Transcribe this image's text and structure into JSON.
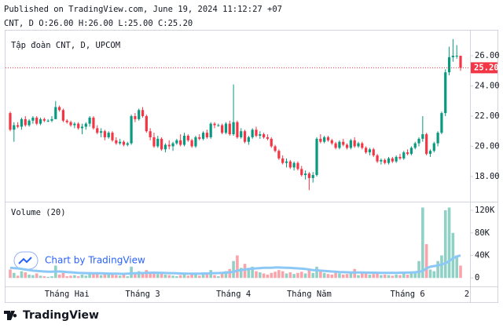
{
  "header": {
    "published": "Published on TradingView.com, June 19, 2024 11:12:27 +07",
    "ohlc": "CNT, D O:26.00 H:26.00 L:25.00 C:25.20"
  },
  "footer": {
    "brand": "TradingView",
    "watermark": "Chart by TradingView"
  },
  "chart_data": {
    "type": "candlestick",
    "title": "Tập đoàn CNT, D, UPCOM",
    "volume_title": "Volume (20)",
    "colors": {
      "up": "#089981",
      "down": "#f23645",
      "volume_ma": "#8cc8f5"
    },
    "ylim": [
      16.44,
      27.61
    ],
    "yticks": [
      {
        "value": 18,
        "label": "18.00"
      },
      {
        "value": 20,
        "label": "20.00"
      },
      {
        "value": 22,
        "label": "22.00"
      },
      {
        "value": 24,
        "label": "24.00"
      },
      {
        "value": 26,
        "label": "26.00"
      }
    ],
    "volume_ylim": [
      -15000,
      134000
    ],
    "volume_ticks": [
      0,
      {
        "value": 40000,
        "label": "40K"
      },
      {
        "value": 80000,
        "label": "80K"
      },
      {
        "value": 120000,
        "label": "120K"
      }
    ],
    "last_price_label": "25.20",
    "x_edge_label": "2",
    "categories": [
      null,
      null,
      null,
      null,
      null,
      null,
      null,
      null,
      null,
      null,
      null,
      null,
      null,
      null,
      null,
      "Tháng Hai",
      null,
      null,
      null,
      null,
      null,
      null,
      null,
      null,
      null,
      null,
      null,
      null,
      null,
      null,
      null,
      null,
      null,
      null,
      null,
      "Tháng 3",
      null,
      null,
      null,
      null,
      null,
      null,
      null,
      null,
      null,
      null,
      null,
      null,
      null,
      null,
      null,
      null,
      null,
      null,
      null,
      null,
      null,
      null,
      null,
      "Tháng 4",
      null,
      null,
      null,
      null,
      null,
      null,
      null,
      null,
      null,
      null,
      null,
      null,
      null,
      null,
      null,
      null,
      null,
      null,
      null,
      "Tháng Năm",
      null,
      null,
      null,
      null,
      null,
      null,
      null,
      null,
      null,
      null,
      null,
      null,
      null,
      null,
      null,
      null,
      null,
      null,
      null,
      null,
      null,
      null,
      null,
      null,
      null,
      "Tháng 6",
      null,
      null,
      null,
      null,
      null,
      null,
      null,
      null,
      null,
      null,
      null,
      null,
      null,
      null
    ],
    "candles": [
      [
        22.2,
        22.3,
        21.0,
        21.1,
        15000
      ],
      [
        21.1,
        21.6,
        20.3,
        21.4,
        9000
      ],
      [
        21.4,
        21.6,
        21.2,
        21.3,
        4000
      ],
      [
        21.3,
        21.9,
        21.1,
        21.8,
        12000
      ],
      [
        21.8,
        22.0,
        21.3,
        21.4,
        10000
      ],
      [
        21.4,
        21.8,
        21.3,
        21.7,
        6000
      ],
      [
        21.7,
        22.0,
        21.5,
        21.9,
        5000
      ],
      [
        21.9,
        22.0,
        21.4,
        21.5,
        8000
      ],
      [
        21.5,
        21.9,
        21.4,
        21.8,
        4000
      ],
      [
        21.8,
        21.9,
        21.6,
        21.7,
        3000
      ],
      [
        21.7,
        21.8,
        21.6,
        21.7,
        2000
      ],
      [
        21.7,
        22.0,
        21.6,
        21.8,
        3000
      ],
      [
        21.8,
        23.0,
        21.8,
        22.6,
        22000
      ],
      [
        22.6,
        22.7,
        22.3,
        22.4,
        6000
      ],
      [
        22.4,
        22.5,
        21.6,
        21.7,
        9000
      ],
      [
        21.7,
        21.8,
        21.5,
        21.6,
        3000
      ],
      [
        21.6,
        21.7,
        21.3,
        21.4,
        4000
      ],
      [
        21.4,
        21.6,
        21.2,
        21.5,
        5000
      ],
      [
        21.5,
        21.6,
        21.1,
        21.2,
        3000
      ],
      [
        21.2,
        21.5,
        20.8,
        21.3,
        6000
      ],
      [
        21.3,
        21.6,
        21.1,
        21.5,
        4000
      ],
      [
        21.5,
        22.0,
        21.3,
        21.9,
        8000
      ],
      [
        21.9,
        22.0,
        21.1,
        21.2,
        9000
      ],
      [
        21.2,
        21.4,
        20.8,
        20.9,
        7000
      ],
      [
        20.9,
        21.2,
        20.6,
        21.0,
        5000
      ],
      [
        21.0,
        21.1,
        20.4,
        20.6,
        8000
      ],
      [
        20.6,
        21.0,
        20.5,
        20.9,
        6000
      ],
      [
        20.9,
        21.0,
        20.3,
        20.4,
        7000
      ],
      [
        20.4,
        20.6,
        20.1,
        20.2,
        5000
      ],
      [
        20.2,
        20.5,
        20.1,
        20.3,
        4000
      ],
      [
        20.3,
        20.4,
        20.0,
        20.1,
        6000
      ],
      [
        20.1,
        20.3,
        20.0,
        20.2,
        3000
      ],
      [
        20.2,
        22.1,
        20.1,
        22.0,
        20000
      ],
      [
        22.0,
        22.2,
        21.6,
        21.8,
        10000
      ],
      [
        21.8,
        22.5,
        21.7,
        22.4,
        12000
      ],
      [
        22.4,
        22.6,
        21.9,
        22.0,
        9000
      ],
      [
        22.0,
        22.1,
        20.9,
        21.0,
        14000
      ],
      [
        21.0,
        21.2,
        20.4,
        20.6,
        8000
      ],
      [
        20.6,
        20.9,
        19.9,
        20.0,
        10000
      ],
      [
        20.0,
        20.7,
        19.9,
        20.5,
        7000
      ],
      [
        20.5,
        20.6,
        19.7,
        19.8,
        9000
      ],
      [
        19.8,
        20.2,
        19.6,
        20.1,
        6000
      ],
      [
        20.1,
        20.4,
        19.8,
        20.0,
        5000
      ],
      [
        20.0,
        20.3,
        19.7,
        20.2,
        4000
      ],
      [
        20.2,
        20.5,
        20.1,
        20.4,
        3000
      ],
      [
        20.4,
        20.8,
        20.0,
        20.1,
        5000
      ],
      [
        20.1,
        20.9,
        20.0,
        20.7,
        6000
      ],
      [
        20.7,
        20.8,
        20.3,
        20.4,
        4000
      ],
      [
        20.4,
        20.5,
        19.9,
        20.0,
        7000
      ],
      [
        20.0,
        20.7,
        19.9,
        20.6,
        8000
      ],
      [
        20.6,
        20.8,
        20.4,
        20.5,
        4000
      ],
      [
        20.5,
        21.0,
        20.4,
        20.9,
        10000
      ],
      [
        20.9,
        21.1,
        20.5,
        20.6,
        6000
      ],
      [
        20.6,
        21.6,
        20.5,
        21.5,
        14000
      ],
      [
        21.5,
        21.6,
        21.2,
        21.4,
        5000
      ],
      [
        21.4,
        21.5,
        21.3,
        21.4,
        3000
      ],
      [
        21.4,
        21.5,
        20.8,
        20.9,
        9000
      ],
      [
        20.9,
        21.6,
        20.8,
        21.5,
        12000
      ],
      [
        21.5,
        21.7,
        20.7,
        20.8,
        16000
      ],
      [
        20.8,
        24.1,
        20.7,
        21.6,
        30000
      ],
      [
        21.6,
        21.7,
        20.5,
        20.6,
        40000
      ],
      [
        20.6,
        21.2,
        20.5,
        21.0,
        18000
      ],
      [
        21.0,
        21.1,
        20.2,
        20.3,
        25000
      ],
      [
        20.3,
        20.7,
        20.1,
        20.6,
        15000
      ],
      [
        20.6,
        21.2,
        20.5,
        21.1,
        20000
      ],
      [
        21.1,
        21.3,
        20.6,
        20.7,
        12000
      ],
      [
        20.7,
        21.0,
        20.5,
        20.8,
        10000
      ],
      [
        20.8,
        20.9,
        20.5,
        20.6,
        8000
      ],
      [
        20.6,
        20.8,
        20.4,
        20.5,
        6000
      ],
      [
        20.5,
        20.6,
        19.9,
        20.0,
        9000
      ],
      [
        20.0,
        20.1,
        19.6,
        19.7,
        11000
      ],
      [
        19.7,
        19.8,
        19.1,
        19.2,
        14000
      ],
      [
        19.2,
        19.4,
        18.8,
        18.9,
        12000
      ],
      [
        18.9,
        19.2,
        18.6,
        19.0,
        8000
      ],
      [
        19.0,
        19.1,
        18.5,
        18.6,
        10000
      ],
      [
        18.6,
        19.0,
        18.4,
        18.9,
        7000
      ],
      [
        18.9,
        19.0,
        18.4,
        18.5,
        9000
      ],
      [
        18.5,
        18.7,
        18.0,
        18.1,
        11000
      ],
      [
        18.1,
        18.4,
        17.8,
        18.2,
        8000
      ],
      [
        18.2,
        18.3,
        17.1,
        17.9,
        15000
      ],
      [
        17.9,
        18.3,
        17.6,
        18.1,
        9000
      ],
      [
        18.1,
        20.6,
        18.0,
        20.5,
        20000
      ],
      [
        20.5,
        20.8,
        20.2,
        20.3,
        14000
      ],
      [
        20.3,
        20.7,
        20.2,
        20.6,
        9000
      ],
      [
        20.6,
        20.7,
        20.3,
        20.4,
        7000
      ],
      [
        20.4,
        20.5,
        20.1,
        20.2,
        6000
      ],
      [
        20.2,
        20.3,
        19.8,
        19.9,
        10000
      ],
      [
        19.9,
        20.4,
        19.8,
        20.3,
        8000
      ],
      [
        20.3,
        20.5,
        20.0,
        20.1,
        6000
      ],
      [
        20.1,
        20.2,
        19.8,
        19.9,
        7000
      ],
      [
        19.9,
        20.5,
        19.8,
        20.4,
        9000
      ],
      [
        20.4,
        20.6,
        19.9,
        20.0,
        16000
      ],
      [
        20.0,
        20.3,
        19.9,
        20.2,
        5000
      ],
      [
        20.2,
        20.3,
        19.8,
        19.9,
        8000
      ],
      [
        19.9,
        20.0,
        19.5,
        19.6,
        10000
      ],
      [
        19.6,
        19.9,
        19.4,
        19.8,
        6000
      ],
      [
        19.8,
        19.9,
        19.3,
        19.4,
        7000
      ],
      [
        19.4,
        19.5,
        18.9,
        19.0,
        9000
      ],
      [
        19.0,
        19.2,
        18.8,
        19.1,
        5000
      ],
      [
        19.1,
        19.2,
        18.8,
        18.9,
        6000
      ],
      [
        18.9,
        19.3,
        18.8,
        19.2,
        5000
      ],
      [
        19.2,
        19.3,
        18.9,
        19.0,
        4000
      ],
      [
        19.0,
        19.4,
        18.9,
        19.3,
        6000
      ],
      [
        19.3,
        19.5,
        19.1,
        19.2,
        5000
      ],
      [
        19.2,
        19.7,
        19.1,
        19.6,
        8000
      ],
      [
        19.6,
        19.8,
        19.4,
        19.5,
        6000
      ],
      [
        19.5,
        20.0,
        19.4,
        19.9,
        10000
      ],
      [
        19.9,
        20.3,
        19.8,
        20.2,
        12000
      ],
      [
        20.2,
        20.6,
        20.0,
        20.5,
        30000
      ],
      [
        20.5,
        22.0,
        20.3,
        20.8,
        125000
      ],
      [
        20.8,
        20.9,
        19.4,
        19.5,
        60000
      ],
      [
        19.5,
        19.8,
        19.3,
        19.7,
        15000
      ],
      [
        19.7,
        20.3,
        19.6,
        20.2,
        12000
      ],
      [
        20.2,
        21.0,
        20.0,
        20.9,
        30000
      ],
      [
        20.9,
        22.3,
        20.8,
        22.2,
        40000
      ],
      [
        22.2,
        25.1,
        22.0,
        24.9,
        120000
      ],
      [
        24.9,
        26.6,
        24.7,
        25.9,
        125000
      ],
      [
        25.9,
        27.1,
        25.6,
        26.0,
        80000
      ],
      [
        26.0,
        26.7,
        25.8,
        26.0,
        40000
      ],
      [
        26.0,
        26.0,
        25.0,
        25.2,
        22000
      ]
    ],
    "volume_ma": [
      18000,
      17500,
      17000,
      16000,
      15000,
      14000,
      13000,
      12500,
      12000,
      11500,
      11000,
      11000,
      11500,
      11500,
      11000,
      10500,
      10000,
      9500,
      9000,
      8800,
      8600,
      8500,
      8400,
      8300,
      8200,
      8000,
      7800,
      7600,
      7500,
      7400,
      7300,
      7500,
      8000,
      8200,
      8500,
      8700,
      9000,
      9200,
      9300,
      9200,
      9000,
      8800,
      8600,
      8500,
      8300,
      8000,
      7800,
      7700,
      7600,
      7500,
      7600,
      7800,
      8000,
      8300,
      8500,
      8700,
      9000,
      9500,
      10000,
      11000,
      13000,
      14000,
      15000,
      16000,
      16500,
      17000,
      17500,
      18000,
      18000,
      18200,
      18500,
      18500,
      18300,
      18000,
      17800,
      17500,
      17000,
      16500,
      16000,
      15000,
      14000,
      13500,
      13000,
      12500,
      12000,
      11500,
      11000,
      10500,
      10200,
      10000,
      9800,
      9800,
      9700,
      9600,
      9500,
      9400,
      9300,
      9200,
      9100,
      9000,
      9000,
      9000,
      9100,
      9200,
      9300,
      9500,
      9800,
      10000,
      11000,
      12000,
      17000,
      20000,
      21000,
      22000,
      24000,
      26000,
      30000,
      35000,
      38000,
      40000
    ]
  }
}
